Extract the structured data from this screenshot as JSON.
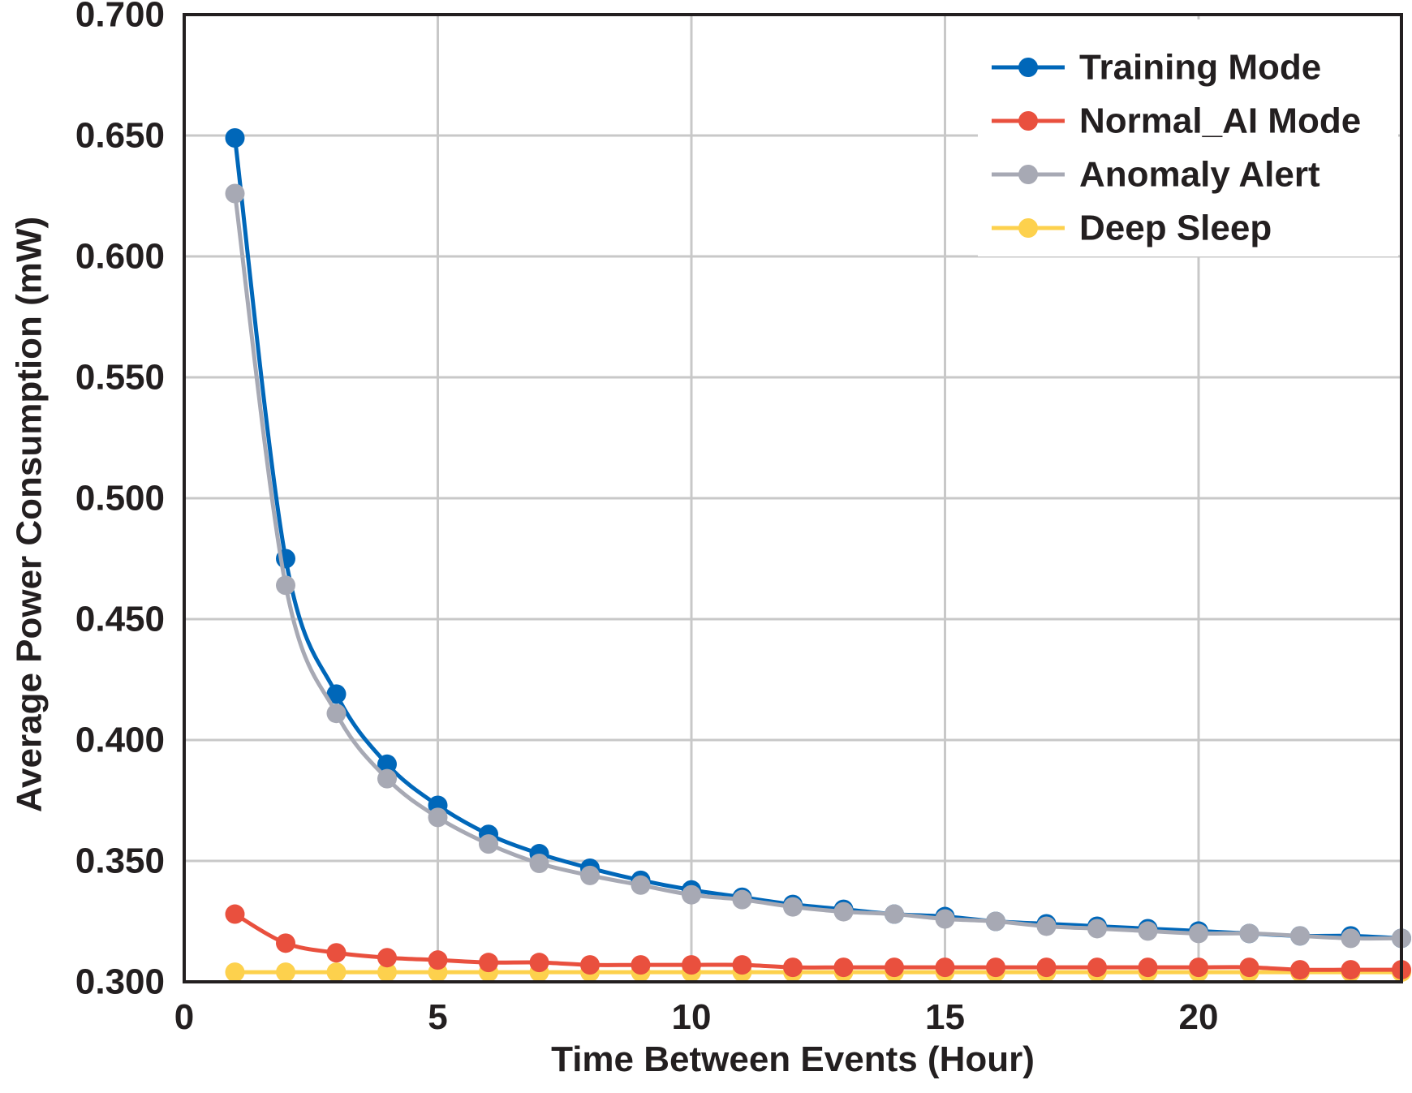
{
  "chart_data": {
    "type": "line",
    "title": "",
    "xlabel": "Time Between Events (Hour)",
    "ylabel": "Average Power Consumption (mW)",
    "xlim": [
      0,
      24
    ],
    "ylim": [
      0.3,
      0.7
    ],
    "x_ticks": [
      0,
      5,
      10,
      15,
      20
    ],
    "x_tick_labels": [
      "0",
      "5",
      "10",
      "15",
      "20"
    ],
    "y_ticks": [
      0.3,
      0.35,
      0.4,
      0.45,
      0.5,
      0.55,
      0.6,
      0.65,
      0.7
    ],
    "y_tick_labels": [
      "0.300",
      "0.350",
      "0.400",
      "0.450",
      "0.500",
      "0.550",
      "0.600",
      "0.650",
      "0.700"
    ],
    "grid": true,
    "legend_position": "top-right",
    "x": [
      1,
      2,
      3,
      4,
      5,
      6,
      7,
      8,
      9,
      10,
      11,
      12,
      13,
      14,
      15,
      16,
      17,
      18,
      19,
      20,
      21,
      22,
      23,
      24
    ],
    "series": [
      {
        "name": "Training Mode",
        "color": "#0067b9",
        "values": [
          0.649,
          0.475,
          0.419,
          0.39,
          0.373,
          0.361,
          0.353,
          0.347,
          0.342,
          0.338,
          0.335,
          0.332,
          0.33,
          0.328,
          0.327,
          0.325,
          0.324,
          0.323,
          0.322,
          0.321,
          0.32,
          0.319,
          0.319,
          0.318
        ]
      },
      {
        "name": "Normal_AI Mode",
        "color": "#e9503e",
        "values": [
          0.328,
          0.316,
          0.312,
          0.31,
          0.309,
          0.308,
          0.308,
          0.307,
          0.307,
          0.307,
          0.307,
          0.306,
          0.306,
          0.306,
          0.306,
          0.306,
          0.306,
          0.306,
          0.306,
          0.306,
          0.306,
          0.305,
          0.305,
          0.305
        ]
      },
      {
        "name": "Anomaly Alert",
        "color": "#a7a9b4",
        "values": [
          0.626,
          0.464,
          0.411,
          0.384,
          0.368,
          0.357,
          0.349,
          0.344,
          0.34,
          0.336,
          0.334,
          0.331,
          0.329,
          0.328,
          0.326,
          0.325,
          0.323,
          0.322,
          0.321,
          0.32,
          0.32,
          0.319,
          0.318,
          0.318
        ]
      },
      {
        "name": "Deep Sleep",
        "color": "#fdd14d",
        "values": [
          0.304,
          0.304,
          0.304,
          0.304,
          0.304,
          0.304,
          0.304,
          0.304,
          0.304,
          0.304,
          0.304,
          0.304,
          0.304,
          0.304,
          0.304,
          0.304,
          0.304,
          0.304,
          0.304,
          0.304,
          0.304,
          0.304,
          0.304,
          0.304
        ]
      }
    ]
  }
}
